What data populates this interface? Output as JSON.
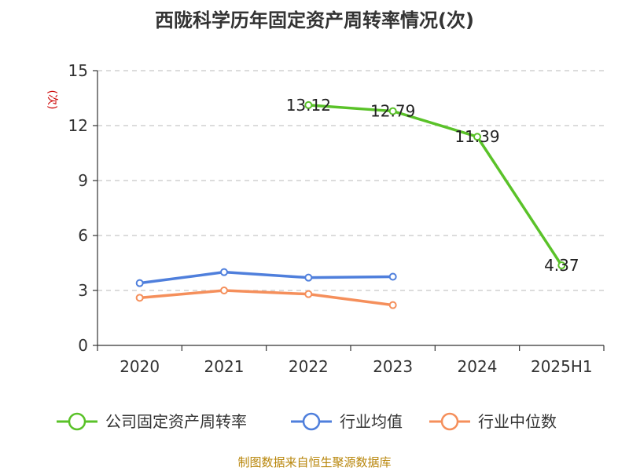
{
  "chart_data": {
    "type": "line",
    "title": "西陇科学历年固定资产周转率情况(次)",
    "ylabel": "(次)",
    "ylim": [
      0,
      15
    ],
    "yticks": [
      0,
      3,
      6,
      9,
      12,
      15
    ],
    "categories": [
      "2020",
      "2021",
      "2022",
      "2023",
      "2024",
      "2025H1"
    ],
    "grid": true,
    "legend_position": "bottom",
    "series": [
      {
        "name": "公司固定资产周转率",
        "color": "#5ac229",
        "values": [
          null,
          null,
          13.12,
          12.79,
          11.39,
          4.37
        ],
        "show_labels": true
      },
      {
        "name": "行业均值",
        "color": "#4f7fdc",
        "values": [
          3.4,
          4.0,
          3.7,
          3.75,
          null,
          null
        ],
        "show_labels": false
      },
      {
        "name": "行业中位数",
        "color": "#f58f5b",
        "values": [
          2.6,
          3.0,
          2.8,
          2.2,
          null,
          null
        ],
        "show_labels": false
      }
    ]
  },
  "source": "制图数据来自恒生聚源数据库"
}
